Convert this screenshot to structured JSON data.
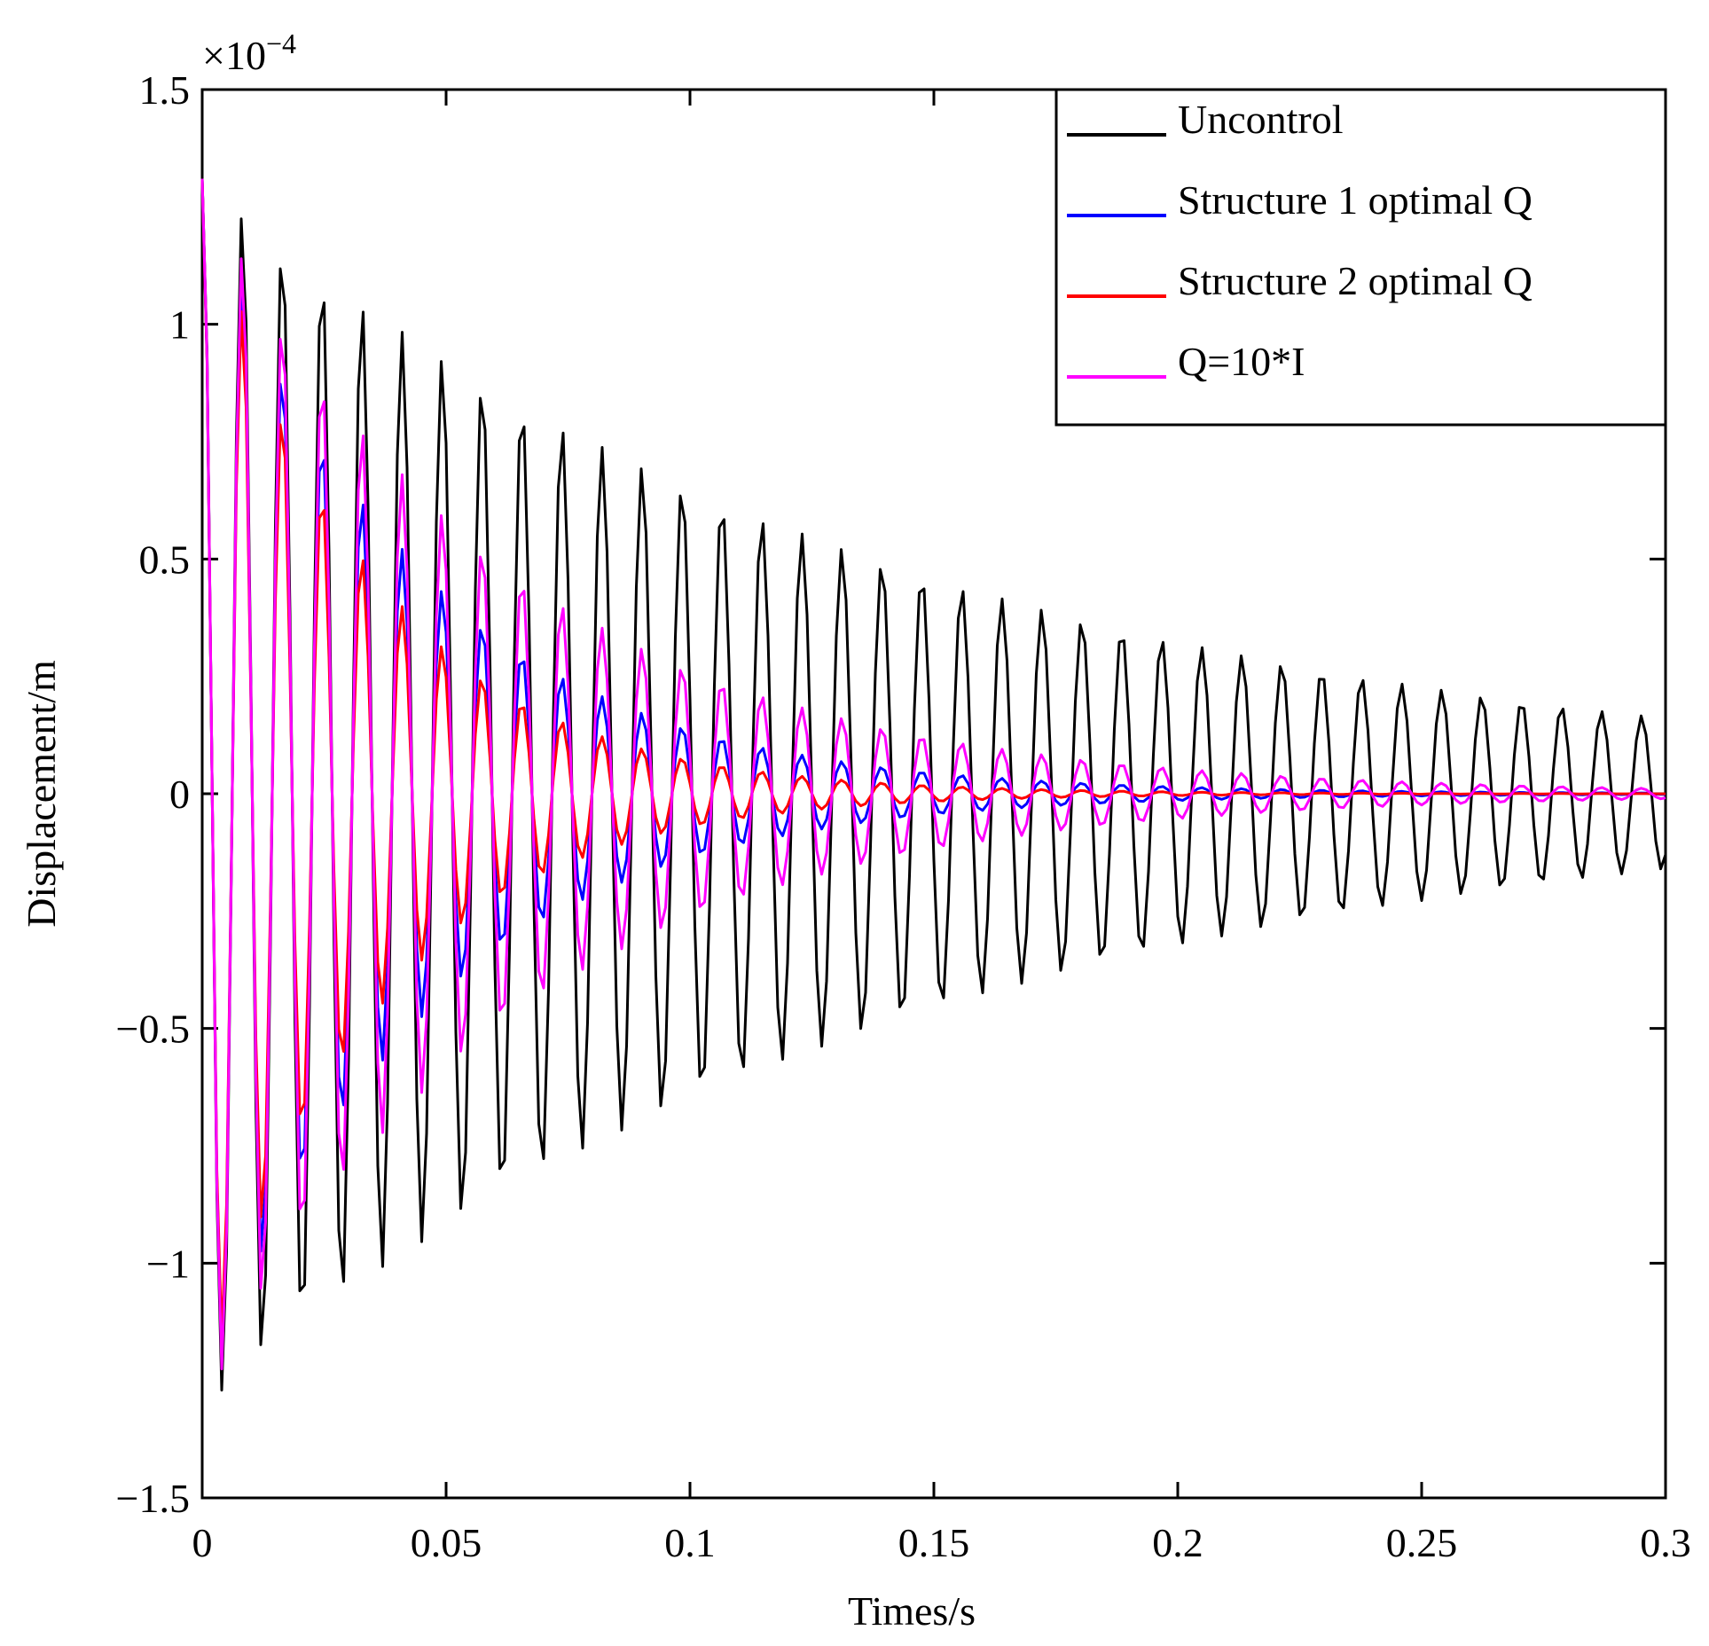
{
  "chart_data": {
    "type": "line",
    "xlabel": "Times/s",
    "ylabel": "Displacement/m",
    "xlim": [
      0,
      0.3
    ],
    "ylim": [
      -1.5,
      1.5
    ],
    "y_scale_label": "×10",
    "y_scale_exponent": "−4",
    "xticks": [
      0,
      0.05,
      0.1,
      0.15,
      0.2,
      0.25,
      0.3
    ],
    "xtick_labels": [
      "0",
      "0.05",
      "0.1",
      "0.15",
      "0.2",
      "0.25",
      "0.3"
    ],
    "yticks": [
      -1.5,
      -1,
      -0.5,
      0,
      0.5,
      1,
      1.5
    ],
    "ytick_labels": [
      "−1.5",
      "−1",
      "−0.5",
      "0",
      "0.5",
      "1",
      "1.5"
    ],
    "legend_position": "top-right",
    "model": {
      "description": "damped oscillation y(t) = A * exp(-zeta*omega*t) * cos(omega*t), y in units of 1e-4 m",
      "frequency_hz": 122,
      "dt": 0.001,
      "t_end": 0.3
    },
    "series": [
      {
        "name": "Uncontrol",
        "color": "#000000",
        "amplitude": 1.31,
        "decay_rate": 7.0
      },
      {
        "name": "Structure 1 optimal Q",
        "color": "#0000ff",
        "amplitude": 1.31,
        "decay_rate": 22.5
      },
      {
        "name": "Structure 2 optimal Q",
        "color": "#ff0000",
        "amplitude": 1.31,
        "decay_rate": 29.0
      },
      {
        "name": "Q=10*I",
        "color": "#ff00ff",
        "amplitude": 1.31,
        "decay_rate": 16.0
      }
    ]
  }
}
